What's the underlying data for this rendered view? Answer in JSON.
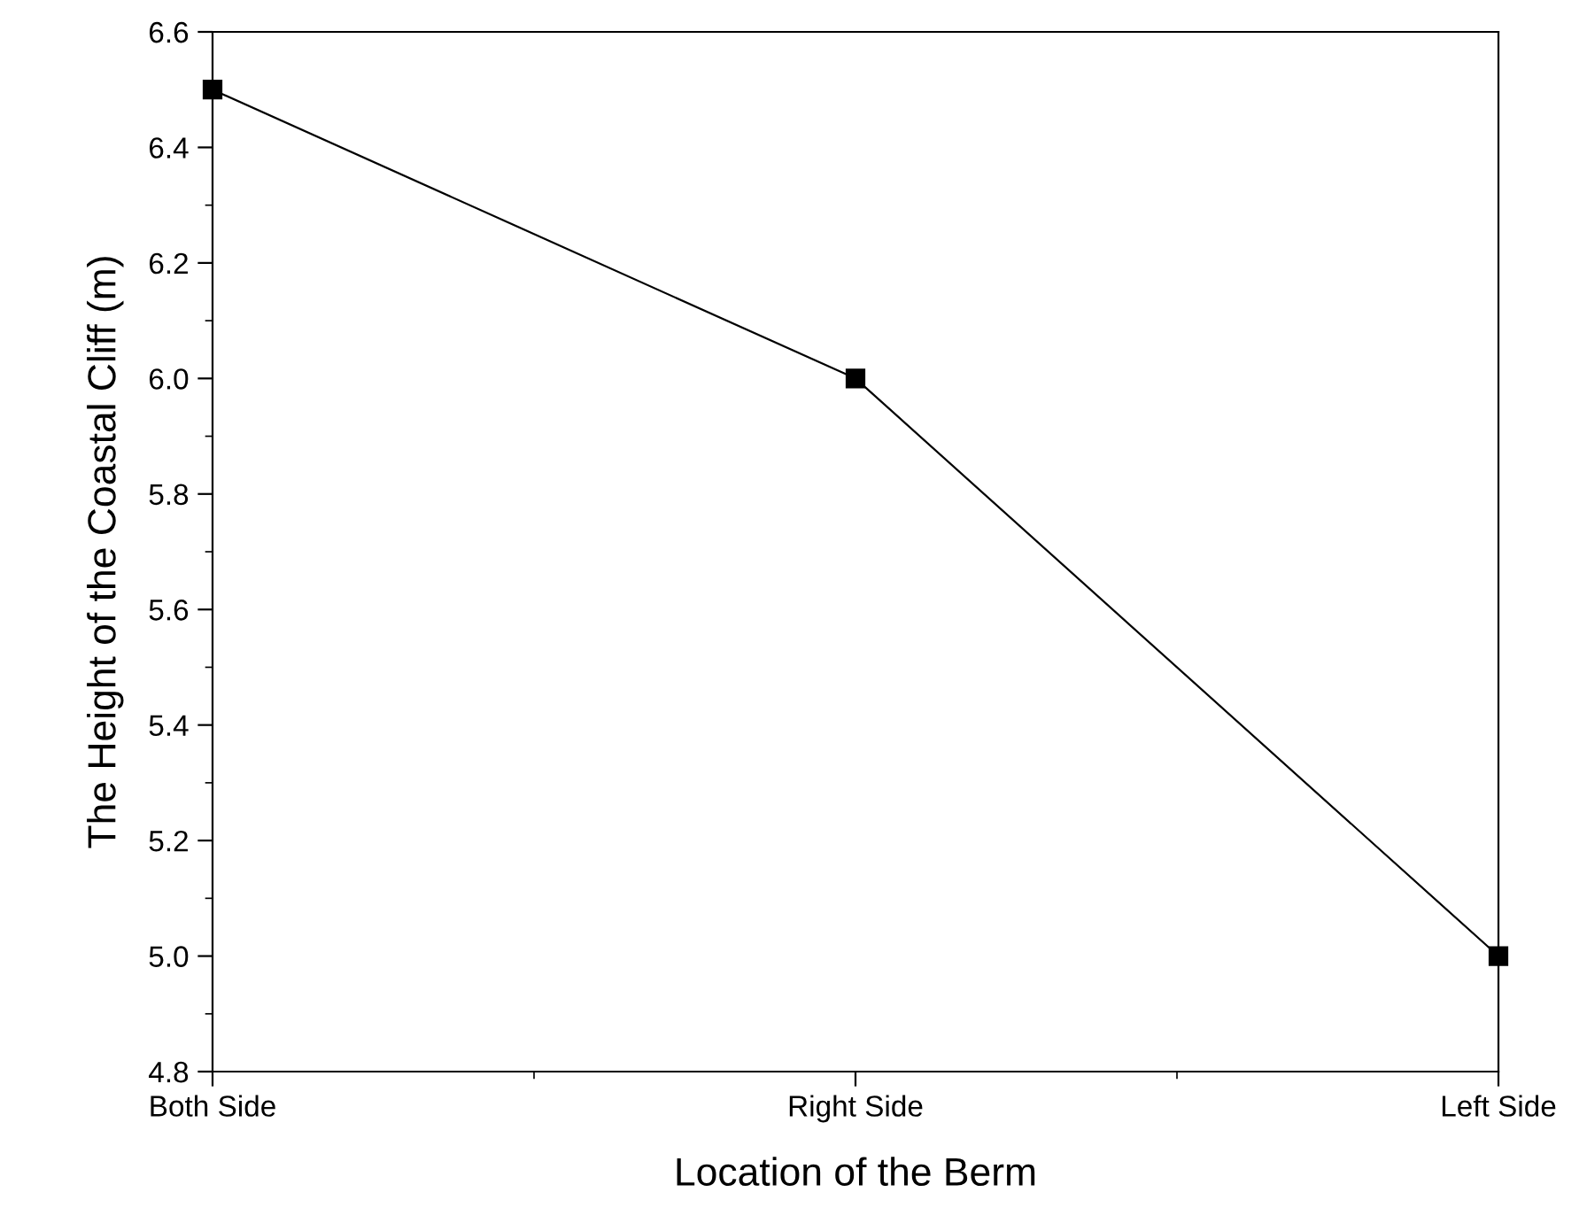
{
  "chart_data": {
    "type": "line",
    "xlabel": "Location of the Berm",
    "ylabel": "The Height of the Coastal Cliff (m)",
    "categories": [
      "Both Side",
      "Right Side",
      "Left Side"
    ],
    "series": [
      {
        "color": "#000000",
        "values": [
          6.5,
          6.0,
          5.0
        ]
      }
    ],
    "ylim": [
      4.8,
      6.6
    ],
    "yticks": [
      4.8,
      {
        "value": 5,
        "label": "5.0"
      },
      5.2,
      5.4,
      5.6,
      5.8,
      {
        "value": 6,
        "label": "6.0"
      },
      6.2,
      6.4,
      6.6
    ],
    "marker": "square",
    "line_style": "solid",
    "grid": false,
    "legend": false
  }
}
